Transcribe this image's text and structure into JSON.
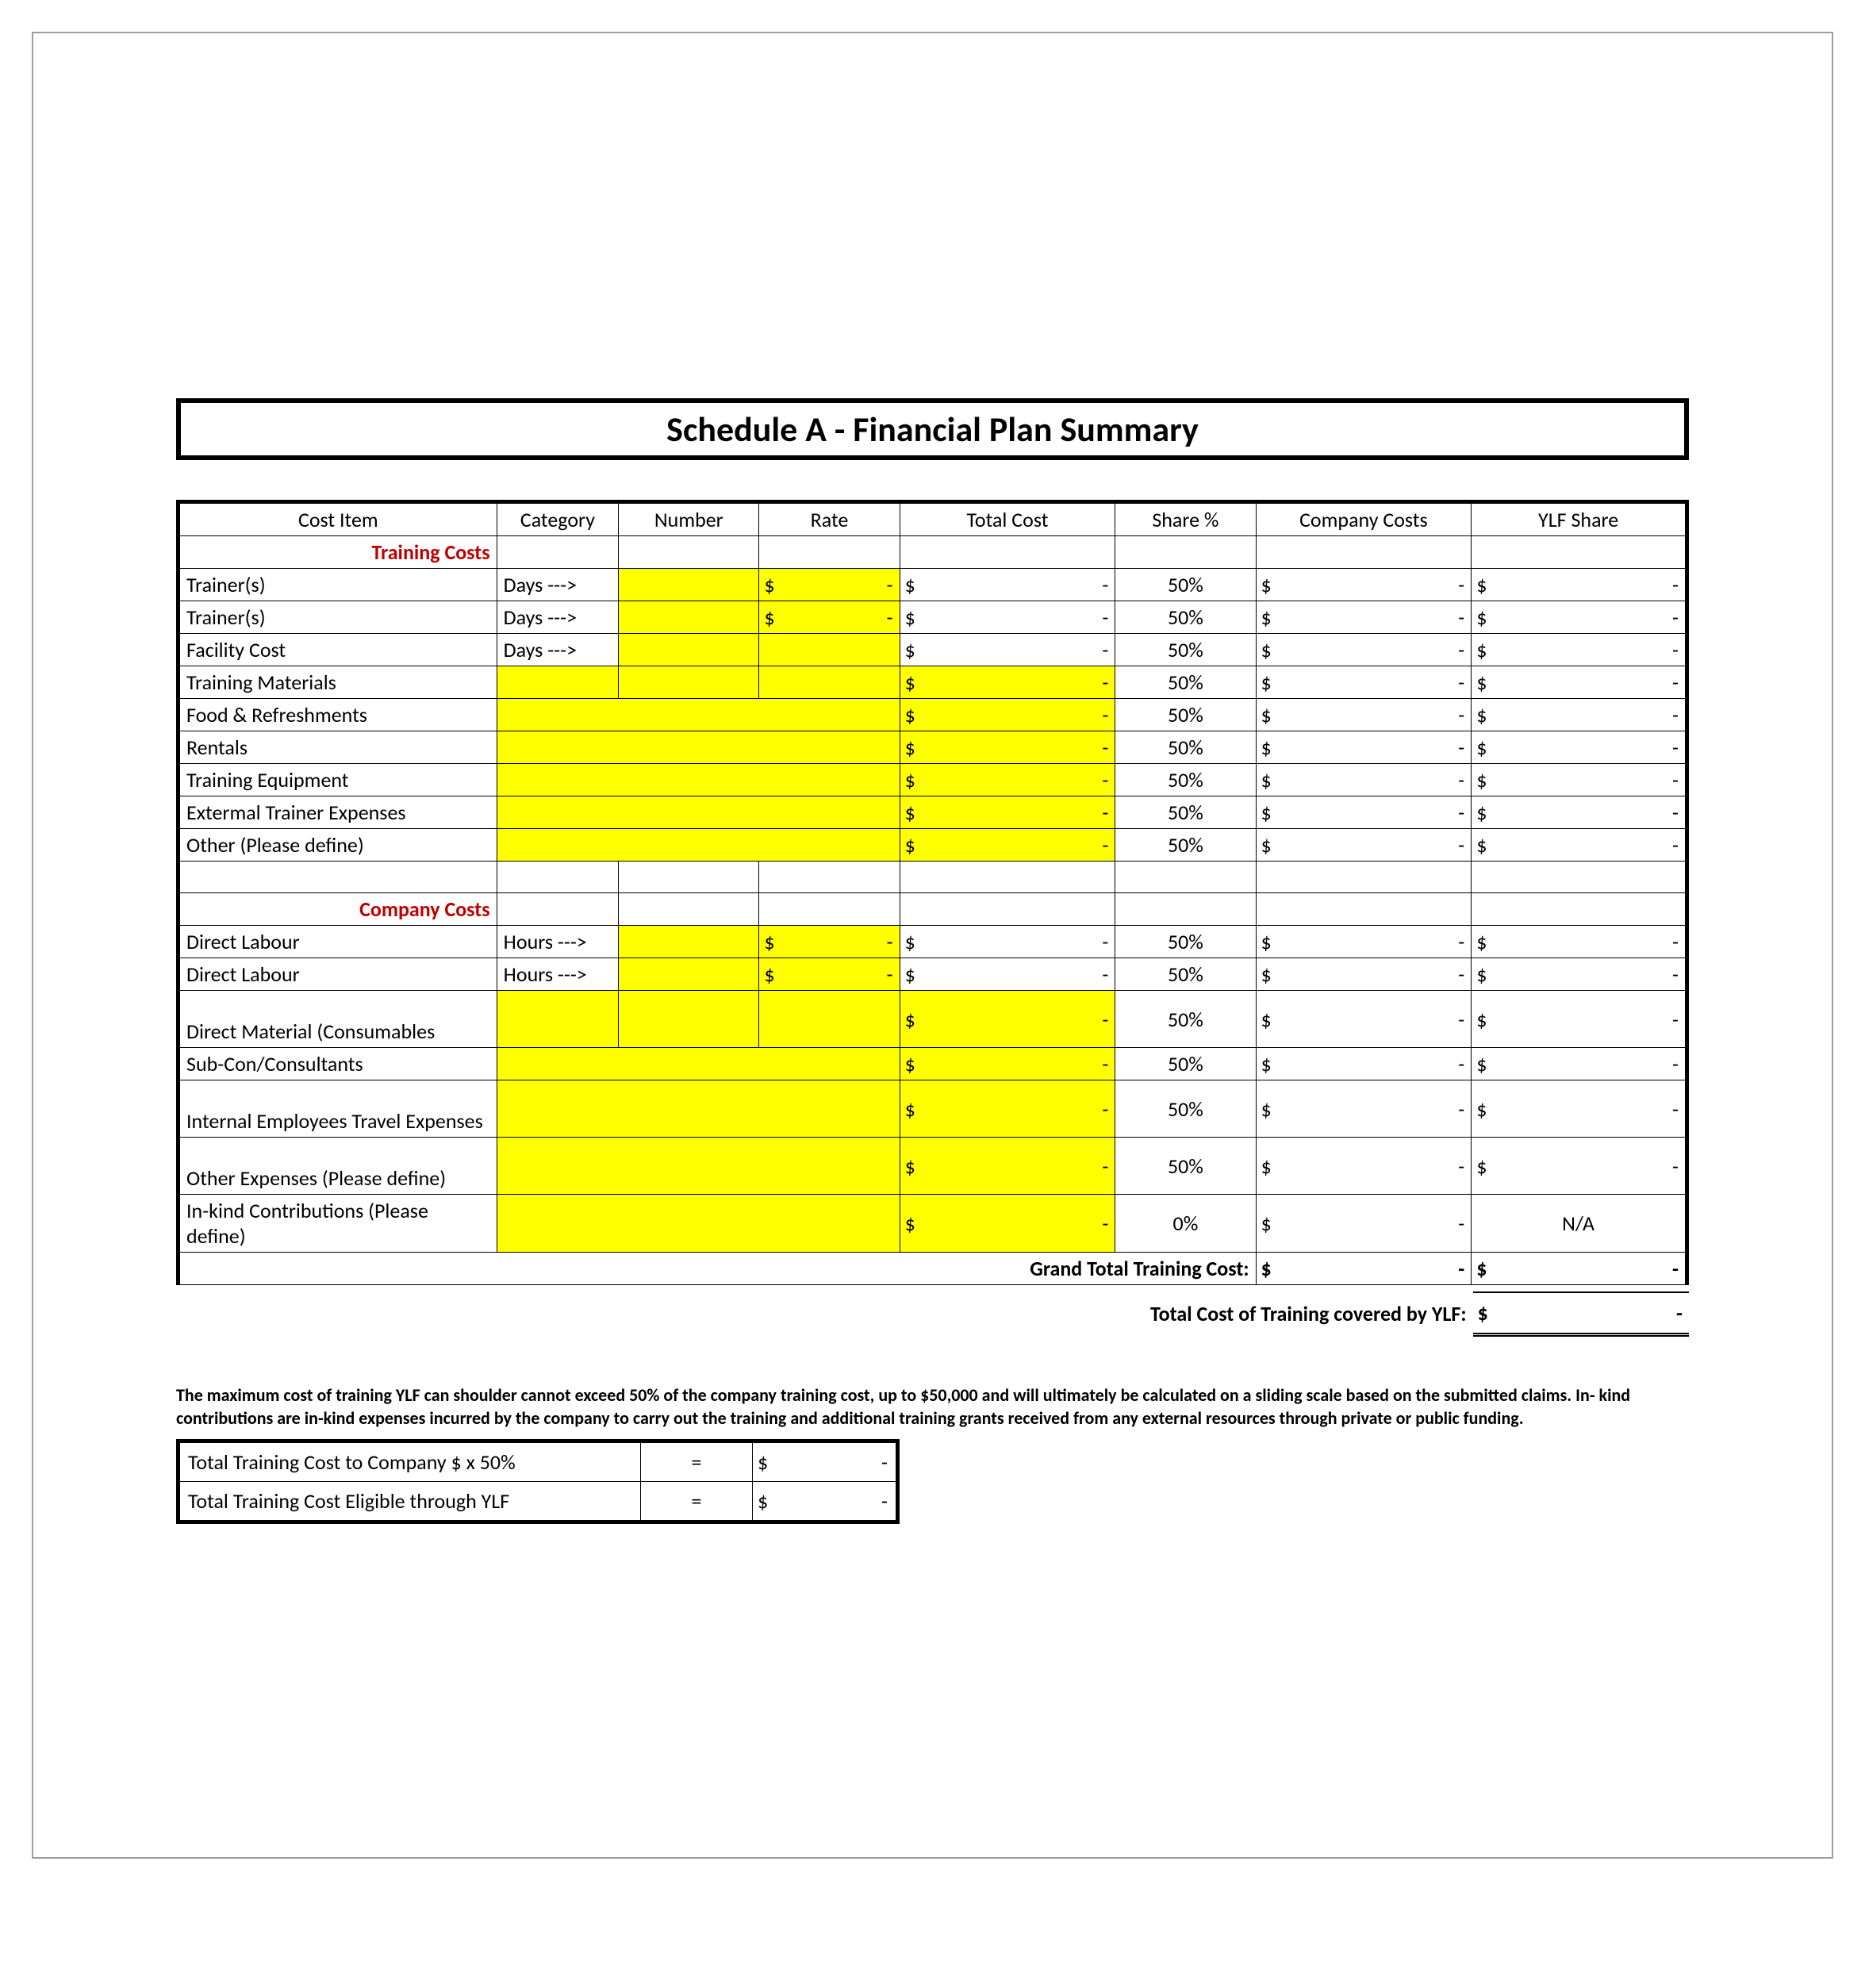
{
  "title": "Schedule A - Financial Plan Summary",
  "columns": [
    "Cost Item",
    "Category",
    "Number",
    "Rate",
    "Total Cost",
    "Share %",
    "Company Costs",
    "YLF Share"
  ],
  "sections": {
    "training": {
      "header": "Training  Costs",
      "rows": [
        {
          "item": "Trainer(s)",
          "cat": "Days --->",
          "num_yellow": true,
          "rate_yellow": true,
          "rate": "$            -",
          "total": "$                         -",
          "total_yellow": false,
          "share": "50%",
          "comp": "$                         -",
          "ylf": "$                         -"
        },
        {
          "item": "Trainer(s)",
          "cat": "Days --->",
          "num_yellow": true,
          "rate_yellow": true,
          "rate": "$            -",
          "total": "$                         -",
          "total_yellow": false,
          "share": "50%",
          "comp": "$                         -",
          "ylf": "$                         -"
        },
        {
          "item": "Facility Cost",
          "cat": "Days --->",
          "num_yellow": true,
          "rate_yellow": true,
          "rate": "",
          "total": "$                         -",
          "total_yellow": false,
          "share": "50%",
          "comp": "$                         -",
          "ylf": "$                         -"
        },
        {
          "item": "Training Materials",
          "cat_yellow": true,
          "num_yellow": true,
          "rate_yellow": true,
          "total": "$                         -",
          "total_yellow": true,
          "share": "50%",
          "comp": "$                         -",
          "ylf": "$                         -"
        },
        {
          "item": "Food & Refreshments",
          "wide_yellow": true,
          "total": "$                         -",
          "total_yellow": true,
          "share": "50%",
          "comp": "$                         -",
          "ylf": "$                         -"
        },
        {
          "item": "Rentals",
          "wide_yellow": true,
          "total": "$                         -",
          "total_yellow": true,
          "share": "50%",
          "comp": "$                         -",
          "ylf": "$                         -"
        },
        {
          "item": "Training Equipment",
          "wide_yellow": true,
          "total": "$                         -",
          "total_yellow": true,
          "share": "50%",
          "comp": "$                         -",
          "ylf": "$                         -"
        },
        {
          "item": "Extermal Trainer Expenses",
          "wide_yellow": true,
          "total": "$                         -",
          "total_yellow": true,
          "share": "50%",
          "comp": "$                         -",
          "ylf": "$                         -"
        },
        {
          "item": "Other (Please define)",
          "wide_yellow": true,
          "total": "$                         -",
          "total_yellow": true,
          "share": "50%",
          "comp": "$                         -",
          "ylf": "$                         -"
        }
      ]
    },
    "company": {
      "header": "Company Costs",
      "rows": [
        {
          "item": "Direct Labour",
          "cat": "Hours --->",
          "num_yellow": true,
          "rate_yellow": true,
          "rate": "$            -",
          "total": "$                         -",
          "total_yellow": false,
          "share": "50%",
          "comp": "$                         -",
          "ylf": "$                         -"
        },
        {
          "item": "Direct Labour",
          "cat": "Hours --->",
          "num_yellow": true,
          "rate_yellow": true,
          "rate": "$            -",
          "total": "$                         -",
          "total_yellow": false,
          "share": "50%",
          "comp": "$                         -",
          "ylf": "$                         -"
        },
        {
          "item": "Direct Material (Consumables",
          "tall": true,
          "cat_yellow": true,
          "num_yellow": true,
          "rate_yellow": true,
          "total": "$                         -",
          "total_yellow": true,
          "share": "50%",
          "comp": "$                         -",
          "ylf": "$                         -"
        },
        {
          "item": "Sub-Con/Consultants",
          "wide_yellow": true,
          "total": "$                         -",
          "total_yellow": true,
          "share": "50%",
          "comp": "$                         -",
          "ylf": "$                         -"
        },
        {
          "item": "Internal Employees Travel Expenses",
          "tall": true,
          "wide_yellow": true,
          "total": "$                         -",
          "total_yellow": true,
          "share": "50%",
          "comp": "$                         -",
          "ylf": "$                         -"
        },
        {
          "item": "Other Expenses (Please define)",
          "tall": true,
          "wide_yellow": true,
          "total": "$                         -",
          "total_yellow": true,
          "share": "50%",
          "comp": "$                         -",
          "ylf": "$                         -"
        },
        {
          "item": "In-kind Contributions (Please define)",
          "tall": true,
          "wide_yellow": true,
          "total": "$                         -",
          "total_yellow": true,
          "share": "0%",
          "comp": "$                         -",
          "ylf": "N/A",
          "ylf_center": true
        }
      ]
    }
  },
  "grand_label": "Grand Total Training Cost:",
  "grand_comp": "$                         -",
  "grand_ylf": "$                         -",
  "covered_label": "Total Cost of Training covered by YLF:",
  "covered_val": "$                         -",
  "note": "The maximum cost of training YLF can shoulder cannot exceed 50% of the company training cost, up to $50,000 and will ultimately be calculated on a sliding scale based on the submitted claims.  In- kind contributions are in-kind expenses incurred by the company to carry out the training and additional training grants received from any external resources through private or public funding.",
  "summary": [
    {
      "label": "Total Training Cost to Company $ x 50%",
      "eq": "=",
      "val": "$               -"
    },
    {
      "label": "Total Training Cost Eligible through YLF",
      "eq": "=",
      "val": "$               -"
    }
  ],
  "colors": {
    "highlight": "#ffff00",
    "section_header": "#c00000",
    "border": "#000000",
    "page_border": "#9e9e9e"
  }
}
